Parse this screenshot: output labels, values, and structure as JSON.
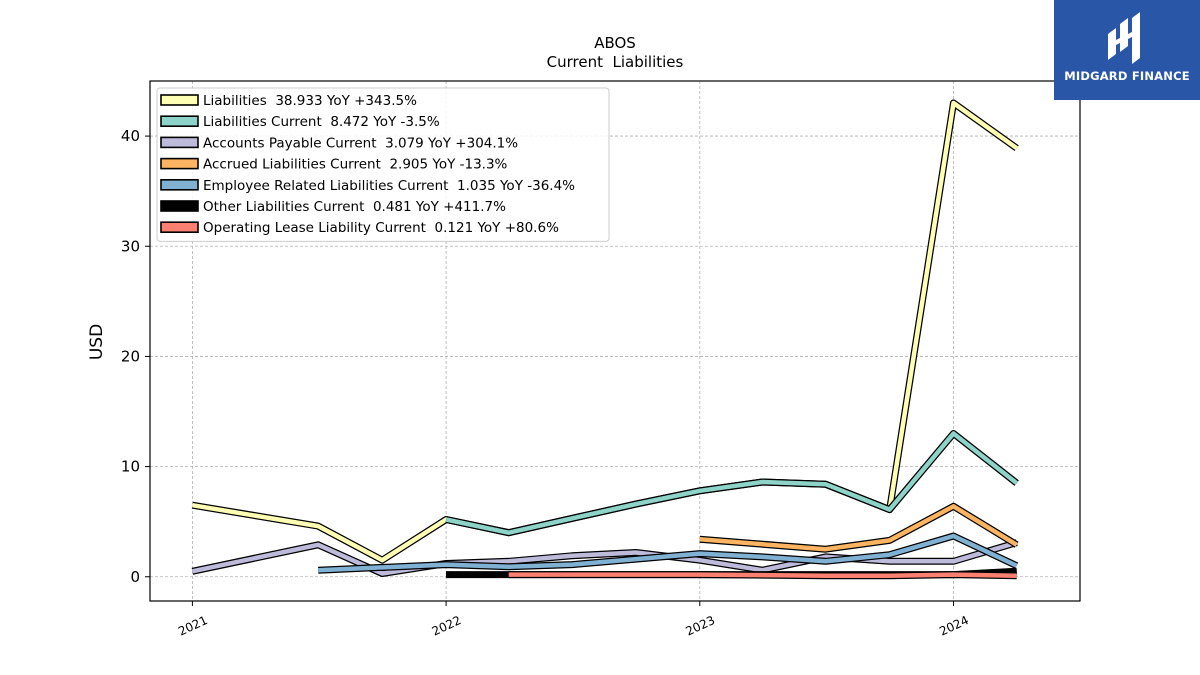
{
  "chart_data": {
    "type": "line",
    "title": "ABOS",
    "subtitle": "Current  Liabilities",
    "xlabel": "",
    "ylabel": "USD",
    "xlim": [
      "2020-11-01",
      "2024-07-01"
    ],
    "ylim": [
      -2.2,
      45
    ],
    "x_ticks": [
      "2021",
      "2022",
      "2023",
      "2024"
    ],
    "y_ticks": [
      0,
      10,
      20,
      30,
      40
    ],
    "grid": true,
    "legend_position": "top-left",
    "series": [
      {
        "name": "Liabilities  38.933 YoY +343.5%",
        "color": "#ffffb3",
        "points": [
          [
            "2021-01-01",
            6.5
          ],
          [
            "2021-07-01",
            4.6
          ],
          [
            "2021-10-01",
            1.5
          ],
          [
            "2022-01-01",
            5.2
          ],
          [
            "2022-04-01",
            4.0
          ],
          [
            "2022-07-01",
            5.3
          ],
          [
            "2022-10-01",
            6.6
          ],
          [
            "2023-01-01",
            7.8
          ],
          [
            "2023-04-01",
            8.6
          ],
          [
            "2023-07-01",
            8.4
          ],
          [
            "2023-10-01",
            6.1
          ],
          [
            "2024-01-01",
            43.0
          ],
          [
            "2024-04-01",
            38.9
          ]
        ]
      },
      {
        "name": "Liabilities Current  8.472 YoY -3.5%",
        "color": "#8dd3c7",
        "points": [
          [
            "2022-01-01",
            5.2
          ],
          [
            "2022-04-01",
            4.0
          ],
          [
            "2022-07-01",
            5.3
          ],
          [
            "2022-10-01",
            6.6
          ],
          [
            "2023-01-01",
            7.8
          ],
          [
            "2023-04-01",
            8.6
          ],
          [
            "2023-07-01",
            8.4
          ],
          [
            "2023-10-01",
            6.1
          ],
          [
            "2024-01-01",
            13.0
          ],
          [
            "2024-04-01",
            8.5
          ]
        ]
      },
      {
        "name": "Accounts Payable Current  3.079 YoY +304.1%",
        "color": "#bebada",
        "points": [
          [
            "2021-01-01",
            0.5
          ],
          [
            "2021-07-01",
            2.9
          ],
          [
            "2021-10-01",
            0.3
          ],
          [
            "2022-01-01",
            1.2
          ],
          [
            "2022-04-01",
            1.4
          ],
          [
            "2022-07-01",
            1.9
          ],
          [
            "2022-10-01",
            2.2
          ],
          [
            "2023-01-01",
            1.5
          ],
          [
            "2023-04-01",
            0.6
          ],
          [
            "2023-07-01",
            1.8
          ],
          [
            "2023-10-01",
            1.4
          ],
          [
            "2024-01-01",
            1.4
          ],
          [
            "2024-04-01",
            3.1
          ]
        ]
      },
      {
        "name": "Accrued Liabilities Current  2.905 YoY -13.3%",
        "color": "#fdb462",
        "points": [
          [
            "2023-01-01",
            3.4
          ],
          [
            "2023-07-01",
            2.5
          ],
          [
            "2023-10-01",
            3.3
          ],
          [
            "2024-01-01",
            6.4
          ],
          [
            "2024-04-01",
            2.9
          ]
        ]
      },
      {
        "name": "Employee Related Liabilities Current  1.035 YoY -36.4%",
        "color": "#80b1d3",
        "points": [
          [
            "2021-07-01",
            0.6
          ],
          [
            "2022-01-01",
            1.1
          ],
          [
            "2022-04-01",
            0.9
          ],
          [
            "2022-07-01",
            1.1
          ],
          [
            "2022-10-01",
            1.6
          ],
          [
            "2023-01-01",
            2.1
          ],
          [
            "2023-04-01",
            1.8
          ],
          [
            "2023-07-01",
            1.4
          ],
          [
            "2023-10-01",
            2.0
          ],
          [
            "2024-01-01",
            3.7
          ],
          [
            "2024-04-01",
            1.0
          ]
        ]
      },
      {
        "name": "Other Liabilities Current  0.481 YoY +411.7%",
        "color": "#000000",
        "points": [
          [
            "2022-01-01",
            0.2
          ],
          [
            "2022-04-01",
            0.2
          ],
          [
            "2024-01-01",
            0.2
          ],
          [
            "2024-04-01",
            0.5
          ]
        ]
      },
      {
        "name": "Operating Lease Liability Current  0.121 YoY +80.6%",
        "color": "#fb8072",
        "points": [
          [
            "2022-04-01",
            0.2
          ],
          [
            "2022-07-01",
            0.2
          ],
          [
            "2023-01-01",
            0.2
          ],
          [
            "2023-07-01",
            0.1
          ],
          [
            "2023-10-01",
            0.1
          ],
          [
            "2024-01-01",
            0.2
          ],
          [
            "2024-04-01",
            0.1
          ]
        ]
      }
    ]
  },
  "brand": {
    "name": "MIDGARD FINANCE",
    "color": "#2a56a8",
    "logo_icon": "midgard-logo-icon"
  }
}
